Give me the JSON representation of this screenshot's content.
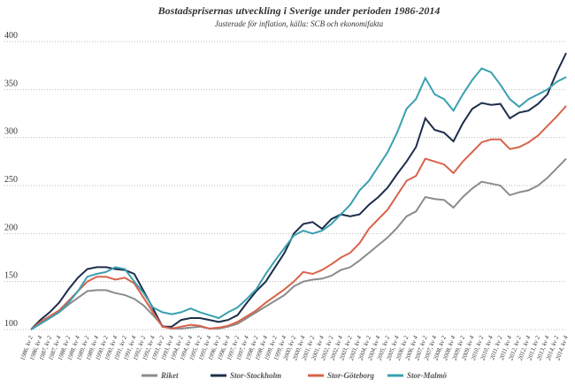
{
  "chart_data": {
    "type": "line",
    "title": "Bostadsprisernas utveckling i Sverige under perioden 1986-2014",
    "subtitle": "Justerade för inflation, källa: SCB och ekonomifakta",
    "categories": [
      "1986, kv 2",
      "1986, kv 4",
      "1987, kv 2",
      "1987, kv 4",
      "1988, kv 2",
      "1988, kv 4",
      "1989, kv 2",
      "1989, kv 4",
      "1990, kv 2",
      "1990, kv 4",
      "1991, kv 2",
      "1991, kv 4",
      "1992, kv 2",
      "1992, kv 4",
      "1993, kv 2",
      "1993, kv 4",
      "1994, kv 2",
      "1994, kv 4",
      "1995, kv 2",
      "1995, kv 4",
      "1996, kv 2",
      "1996, kv 4",
      "1997, kv 2",
      "1997, kv 4",
      "1998, kv 2",
      "1998, kv 4",
      "1999, kv 2",
      "1999, kv 4",
      "2000, kv 2",
      "2000, kv 4",
      "2001, kv 2",
      "2001, kv 4",
      "2002, kv 2",
      "2002, kv 4",
      "2003, kv 2",
      "2003, kv 4",
      "2004, kv 2",
      "2004, kv 4",
      "2005, kv 2",
      "2005, kv 4",
      "2006, kv 2",
      "2006, kv 4",
      "2007, kv 2",
      "2007, kv 4",
      "2008, kv 2",
      "2008, kv 4",
      "2009, kv 2",
      "2009, kv 4",
      "2010, kv 2",
      "2010, kv 4",
      "2011, kv 2",
      "2011, kv 4",
      "2012, kv 2",
      "2012, kv 4",
      "2013, kv 2",
      "2013, kv 4",
      "2014, kv 2",
      "2014, kv 4"
    ],
    "series": [
      {
        "name": "Riket",
        "color": "#8c8c8c",
        "values": [
          100,
          106,
          112,
          118,
          126,
          133,
          140,
          141,
          141,
          138,
          136,
          132,
          125,
          115,
          104,
          101,
          101,
          102,
          103,
          101,
          101,
          103,
          106,
          112,
          118,
          124,
          130,
          136,
          145,
          150,
          152,
          153,
          156,
          162,
          165,
          172,
          180,
          188,
          196,
          206,
          218,
          223,
          238,
          236,
          235,
          227,
          238,
          247,
          254,
          252,
          250,
          240,
          243,
          245,
          250,
          258,
          268,
          278
        ]
      },
      {
        "name": "Stor-Stockholm",
        "color": "#1c2e4a",
        "values": [
          100,
          110,
          118,
          128,
          142,
          154,
          163,
          165,
          165,
          163,
          162,
          158,
          140,
          122,
          103,
          103,
          110,
          112,
          112,
          110,
          108,
          110,
          115,
          128,
          140,
          150,
          165,
          180,
          200,
          210,
          212,
          205,
          215,
          220,
          218,
          220,
          230,
          238,
          248,
          262,
          275,
          290,
          320,
          308,
          305,
          296,
          315,
          330,
          336,
          334,
          335,
          320,
          326,
          328,
          335,
          345,
          368,
          388
        ]
      },
      {
        "name": "Stor-Göteborg",
        "color": "#d9634c",
        "values": [
          100,
          108,
          114,
          120,
          130,
          140,
          150,
          155,
          155,
          152,
          154,
          148,
          133,
          118,
          103,
          101,
          103,
          105,
          104,
          101,
          102,
          104,
          108,
          114,
          120,
          128,
          135,
          142,
          150,
          160,
          158,
          162,
          168,
          175,
          180,
          190,
          205,
          215,
          225,
          240,
          255,
          260,
          278,
          275,
          272,
          263,
          275,
          285,
          295,
          298,
          298,
          288,
          290,
          295,
          302,
          312,
          322,
          333
        ]
      },
      {
        "name": "Stor-Malmö",
        "color": "#3aa0b0",
        "values": [
          100,
          106,
          112,
          118,
          128,
          140,
          155,
          158,
          160,
          165,
          163,
          150,
          138,
          123,
          118,
          116,
          118,
          122,
          118,
          115,
          112,
          118,
          123,
          132,
          142,
          158,
          172,
          185,
          198,
          203,
          200,
          203,
          210,
          220,
          230,
          245,
          255,
          270,
          285,
          305,
          330,
          340,
          362,
          345,
          340,
          328,
          345,
          360,
          372,
          368,
          355,
          340,
          332,
          340,
          345,
          350,
          358,
          363
        ]
      }
    ],
    "ylim": [
      100,
      400
    ],
    "yticks": [
      100,
      150,
      200,
      250,
      300,
      350,
      400
    ],
    "grid": true
  }
}
